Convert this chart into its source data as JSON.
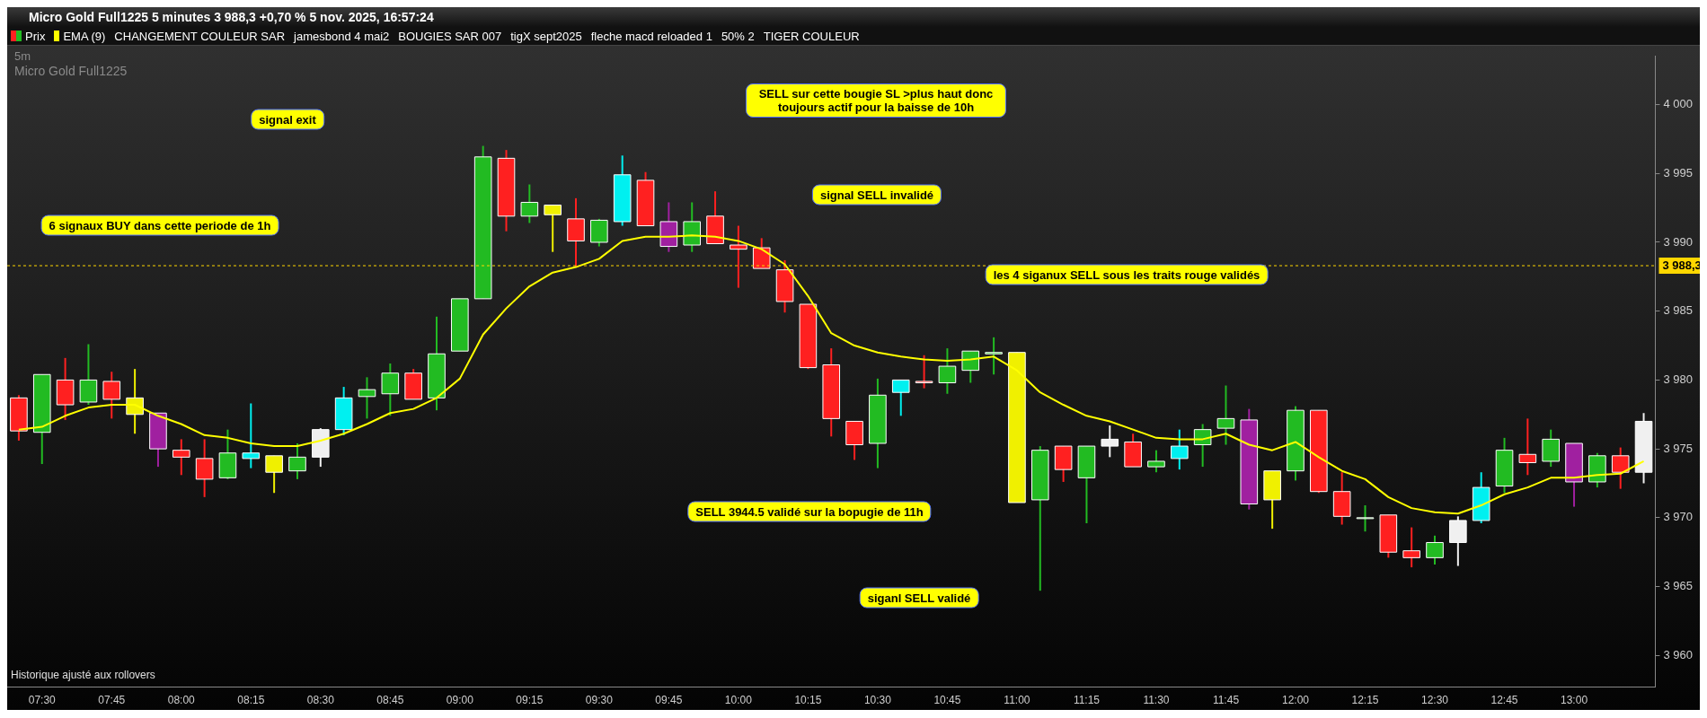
{
  "chart_data": {
    "type": "candlestick",
    "title": "Micro Gold Full1225 5 minutes 3 988,3 +0,70 % 5 nov. 2025, 16:57:24",
    "subtitle": "5m",
    "categories": [
      null,
      "07:30",
      null,
      null,
      "07:45",
      null,
      null,
      "08:00",
      null,
      null,
      "08:15",
      null,
      null,
      "08:30",
      null,
      null,
      "08:45",
      null,
      null,
      "09:00",
      null,
      null,
      "09:15",
      null,
      null,
      "09:30",
      null,
      null,
      "09:45",
      null,
      null,
      "10:00",
      null,
      null,
      "10:15",
      null,
      null,
      "10:30",
      null,
      null,
      "10:45",
      null,
      null,
      "11:00",
      null,
      null,
      "11:15",
      null,
      null,
      "11:30",
      null,
      null,
      "11:45",
      null,
      null,
      "12:00",
      null,
      null,
      "12:15",
      null,
      null,
      "12:30",
      null,
      null,
      "12:45",
      null,
      null,
      "13:00",
      null,
      null,
      null
    ],
    "series": [
      {
        "name": "Prix",
        "ohlc": [
          [
            3978.7,
            3978.9,
            3975.6,
            3976.3
          ],
          [
            3976.2,
            3980.4,
            3973.9,
            3980.4
          ],
          [
            3980.0,
            3981.6,
            3977.1,
            3978.2
          ],
          [
            3978.4,
            3982.6,
            3978.2,
            3980.0
          ],
          [
            3979.9,
            3980.6,
            3977.2,
            3978.6
          ],
          [
            3977.5,
            3980.8,
            3976.1,
            3978.7
          ],
          [
            3977.6,
            3977.6,
            3973.7,
            3975.0
          ],
          [
            3974.9,
            3975.7,
            3973.1,
            3974.4
          ],
          [
            3974.3,
            3975.7,
            3971.5,
            3972.8
          ],
          [
            3972.9,
            3976.4,
            3972.8,
            3974.7
          ],
          [
            3974.3,
            3978.3,
            3973.6,
            3974.7
          ],
          [
            3974.5,
            3974.5,
            3971.8,
            3973.3
          ],
          [
            3973.4,
            3975.4,
            3972.8,
            3974.4
          ],
          [
            3974.4,
            3976.5,
            3973.7,
            3976.4
          ],
          [
            3976.4,
            3979.5,
            3976.0,
            3978.7
          ],
          [
            3978.8,
            3980.2,
            3977.2,
            3979.3
          ],
          [
            3979.0,
            3981.2,
            3977.4,
            3980.5
          ],
          [
            3980.5,
            3980.8,
            3978.6,
            3978.6
          ],
          [
            3978.7,
            3984.6,
            3977.8,
            3981.9
          ],
          [
            3982.1,
            3985.9,
            3982.1,
            3985.9
          ],
          [
            3985.9,
            3997.0,
            3985.9,
            3996.2
          ],
          [
            3996.1,
            3996.7,
            3990.8,
            3991.9
          ],
          [
            3991.9,
            3994.2,
            3991.4,
            3992.9
          ],
          [
            3992.7,
            3992.7,
            3989.3,
            3992.0
          ],
          [
            3991.7,
            3993.2,
            3988.2,
            3990.1
          ],
          [
            3990.0,
            3991.7,
            3989.7,
            3991.6
          ],
          [
            3991.5,
            3996.3,
            3991.2,
            3994.9
          ],
          [
            3994.5,
            3995.1,
            3991.2,
            3991.2
          ],
          [
            3991.5,
            3992.9,
            3989.3,
            3989.7
          ],
          [
            3989.8,
            3992.9,
            3989.3,
            3991.5
          ],
          [
            3991.9,
            3993.7,
            3989.9,
            3989.9
          ],
          [
            3989.8,
            3991.2,
            3986.7,
            3989.5
          ],
          [
            3989.6,
            3990.3,
            3988.1,
            3988.1
          ],
          [
            3988.0,
            3988.7,
            3984.9,
            3985.7
          ],
          [
            3985.5,
            3985.5,
            3980.8,
            3980.9
          ],
          [
            3981.1,
            3982.3,
            3975.9,
            3977.2
          ],
          [
            3977.0,
            3977.0,
            3974.2,
            3975.3
          ],
          [
            3975.4,
            3980.1,
            3973.6,
            3978.9
          ],
          [
            3979.1,
            3980.0,
            3977.4,
            3980.0
          ],
          [
            3979.9,
            3981.8,
            3979.4,
            3979.8
          ],
          [
            3979.8,
            3982.3,
            3979.0,
            3981.0
          ],
          [
            3980.7,
            3982.1,
            3979.8,
            3982.1
          ],
          [
            3981.9,
            3983.1,
            3980.4,
            3982.0
          ],
          [
            3982.0,
            3982.0,
            3971.1,
            3971.1
          ],
          [
            3971.3,
            3975.2,
            3964.7,
            3974.9
          ],
          [
            3975.2,
            3975.2,
            3972.6,
            3973.5
          ],
          [
            3972.9,
            3975.2,
            3969.6,
            3975.2
          ],
          [
            3975.2,
            3976.7,
            3974.4,
            3975.7
          ],
          [
            3975.5,
            3976.1,
            3973.7,
            3973.7
          ],
          [
            3973.7,
            3974.9,
            3973.3,
            3974.1
          ],
          [
            3974.3,
            3976.4,
            3973.5,
            3975.2
          ],
          [
            3975.3,
            3976.8,
            3973.7,
            3976.4
          ],
          [
            3976.5,
            3979.6,
            3975.3,
            3977.2
          ],
          [
            3977.1,
            3977.9,
            3970.6,
            3971.0
          ],
          [
            3973.4,
            3973.4,
            3969.2,
            3971.3
          ],
          [
            3973.4,
            3978.1,
            3972.7,
            3977.8
          ],
          [
            3977.8,
            3977.8,
            3971.8,
            3971.9
          ],
          [
            3971.9,
            3973.3,
            3969.5,
            3970.1
          ],
          [
            3970.0,
            3970.9,
            3969.0,
            3970.0
          ],
          [
            3970.2,
            3970.2,
            3967.1,
            3967.5
          ],
          [
            3967.6,
            3969.3,
            3966.4,
            3967.1
          ],
          [
            3967.1,
            3968.7,
            3966.6,
            3968.2
          ],
          [
            3968.2,
            3970.1,
            3966.5,
            3969.8
          ],
          [
            3969.8,
            3973.3,
            3969.6,
            3972.2
          ],
          [
            3972.3,
            3975.8,
            3971.8,
            3974.9
          ],
          [
            3974.6,
            3977.2,
            3973.1,
            3974.0
          ],
          [
            3974.1,
            3976.4,
            3973.7,
            3975.7
          ],
          [
            3975.4,
            3975.4,
            3970.8,
            3972.6
          ],
          [
            3972.6,
            3974.7,
            3972.2,
            3974.5
          ],
          [
            3974.5,
            3975.1,
            3972.1,
            3973.3
          ],
          [
            3973.3,
            3977.6,
            3972.5,
            3977.0
          ]
        ],
        "colors": [
          "#ff2020",
          "#22bb22",
          "#ff2020",
          "#22bb22",
          "#ff2020",
          "#f0f000",
          "#a020a0",
          "#ff2020",
          "#ff2020",
          "#22bb22",
          "#00f0f0",
          "#f0f000",
          "#22bb22",
          "#f0f0f0",
          "#00f0f0",
          "#22bb22",
          "#22bb22",
          "#ff2020",
          "#22bb22",
          "#22bb22",
          "#22bb22",
          "#ff2020",
          "#22bb22",
          "#f0f000",
          "#ff2020",
          "#22bb22",
          "#00f0f0",
          "#ff2020",
          "#a020a0",
          "#22bb22",
          "#ff2020",
          "#ff2020",
          "#ff2020",
          "#ff2020",
          "#ff2020",
          "#ff2020",
          "#ff2020",
          "#22bb22",
          "#00f0f0",
          "#ff2020",
          "#22bb22",
          "#22bb22",
          "#22bb22",
          "#f0f000",
          "#22bb22",
          "#ff2020",
          "#22bb22",
          "#f0f0f0",
          "#ff2020",
          "#22bb22",
          "#00f0f0",
          "#22bb22",
          "#22bb22",
          "#a020a0",
          "#f0f000",
          "#22bb22",
          "#ff2020",
          "#ff2020",
          "#22bb22",
          "#ff2020",
          "#ff2020",
          "#22bb22",
          "#f0f0f0",
          "#00f0f0",
          "#22bb22",
          "#ff2020",
          "#22bb22",
          "#a020a0",
          "#22bb22",
          "#ff2020",
          "#f0f0f0"
        ]
      },
      {
        "name": "EMA (9)",
        "type": "line",
        "color": "#ffff00",
        "values": [
          3976.4,
          3976.6,
          3977.4,
          3978.0,
          3978.2,
          3978.2,
          3977.4,
          3976.8,
          3976.0,
          3975.8,
          3975.4,
          3975.2,
          3975.2,
          3975.6,
          3976.1,
          3976.8,
          3977.6,
          3977.9,
          3978.7,
          3980.1,
          3983.3,
          3985.2,
          3986.8,
          3987.8,
          3988.2,
          3988.8,
          3990.1,
          3990.4,
          3990.4,
          3990.5,
          3990.4,
          3990.1,
          3989.5,
          3988.4,
          3986.1,
          3983.4,
          3982.5,
          3982.0,
          3981.7,
          3981.5,
          3981.4,
          3981.5,
          3981.7,
          3980.7,
          3979.1,
          3978.2,
          3977.4,
          3977.0,
          3976.4,
          3975.8,
          3975.7,
          3975.7,
          3976.1,
          3975.3,
          3974.9,
          3975.5,
          3974.4,
          3973.4,
          3972.8,
          3971.5,
          3970.7,
          3970.4,
          3970.3,
          3970.9,
          3971.7,
          3972.2,
          3972.9,
          3972.9,
          3973.1,
          3973.2,
          3974.1
        ]
      }
    ],
    "ylim": [
      3957.7,
      4003.5
    ],
    "yticks": [
      {
        "value": 3960,
        "label": "3 960"
      },
      {
        "value": 3965,
        "label": "3 965"
      },
      {
        "value": 3970,
        "label": "3 970"
      },
      {
        "value": 3975,
        "label": "3 975"
      },
      {
        "value": 3980,
        "label": "3 980"
      },
      {
        "value": 3985,
        "label": "3 985"
      },
      {
        "value": 3990,
        "label": "3 990"
      },
      {
        "value": 3995,
        "label": "3 995"
      },
      {
        "value": 4000,
        "label": "4 000"
      }
    ],
    "ref_lines": [
      {
        "axis": "y",
        "value": 3988.3,
        "label": "3 988,3",
        "color": "#ffd700"
      }
    ],
    "legend": "top left",
    "annotations": [
      "CHANGEMENT COULEUR SAR",
      "jamesbond 4 mai2",
      "BOUGIES SAR 007",
      "tigX sept2025",
      "fleche macd reloaded 1",
      "50% 2",
      "TIGER COULEUR",
      "6 signaux BUY dans cette periode de 1h",
      "signal exit",
      "SELL sur cette bougie SL >plus haut donc toujours actif pour la baisse de 10h",
      "signal SELL invalidé",
      "les 4 siganux SELL sous les traits rouge validés",
      "SELL 3944.5 validé sur la bopugie de 11h",
      "siganl SELL validé",
      "Micro Gold Full1225",
      "Historique ajusté aux rollovers"
    ]
  }
}
